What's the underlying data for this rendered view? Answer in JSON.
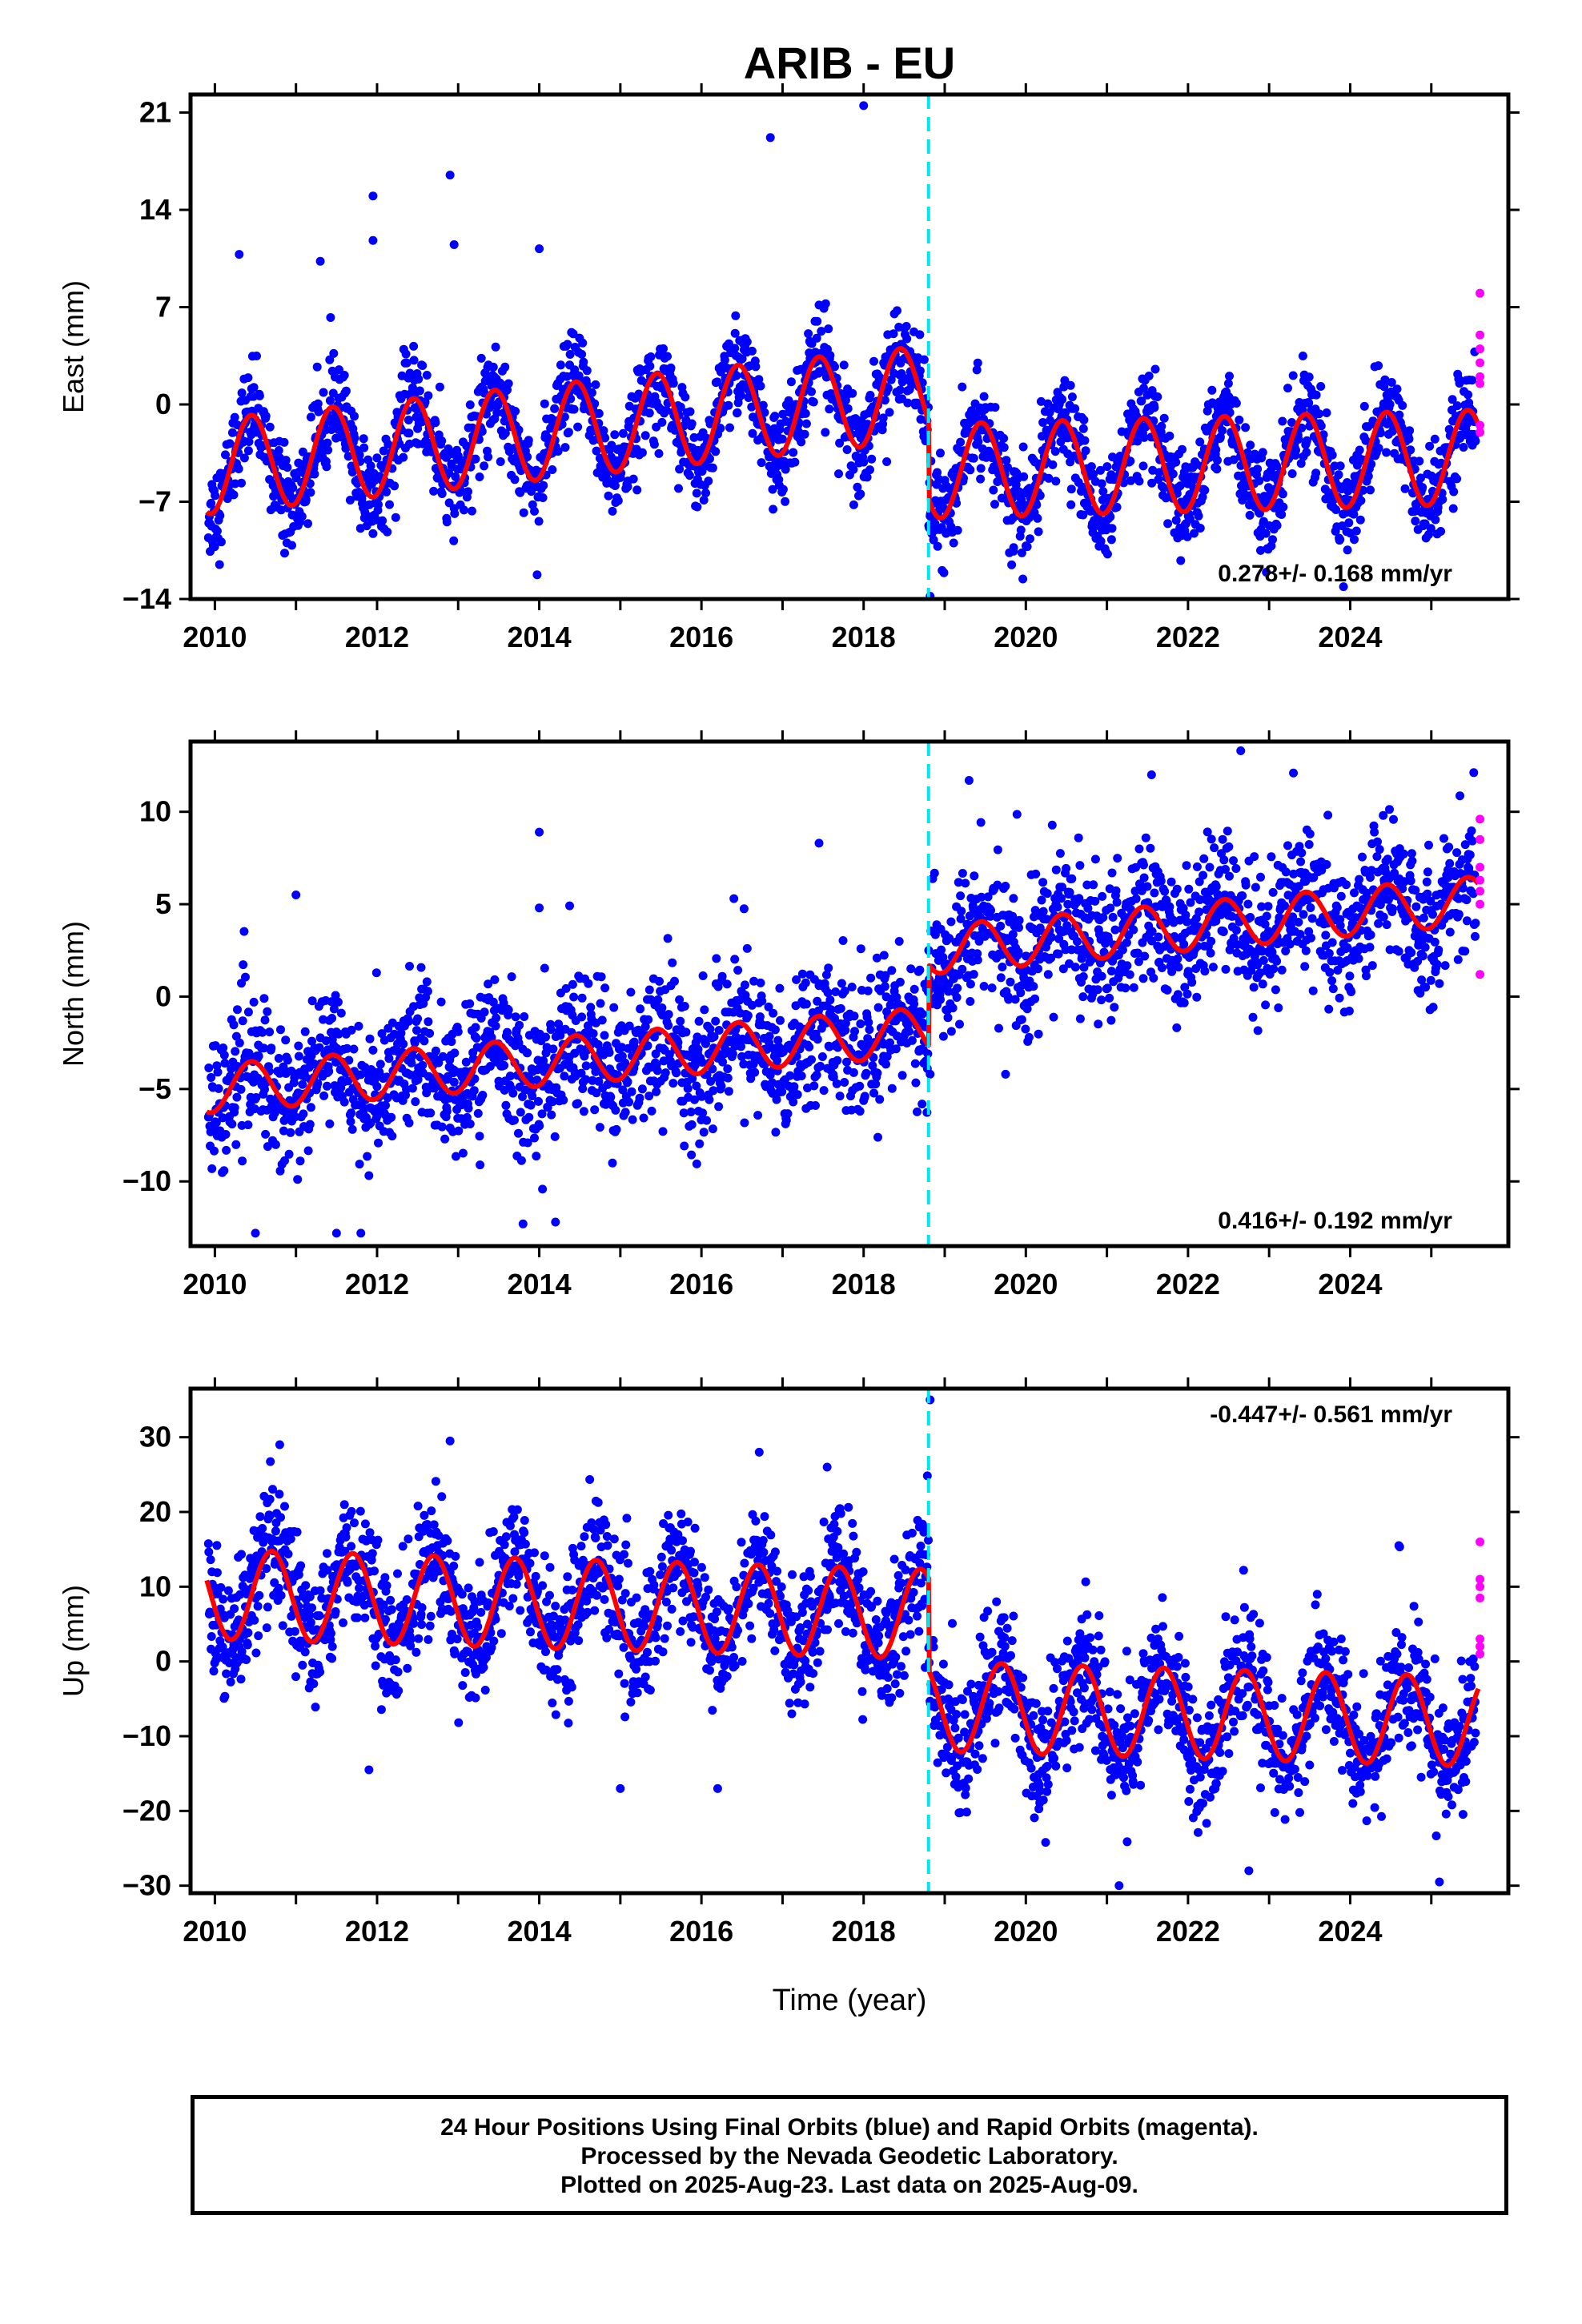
{
  "title": "ARIB - EU",
  "footer": {
    "line1": "24 Hour Positions Using Final Orbits (blue) and Rapid Orbits (magenta).",
    "line2": "Processed by the Nevada Geodetic Laboratory.",
    "line3": "Plotted on 2025-Aug-23. Last data on 2025-Aug-09."
  },
  "colors": {
    "final": "#0000ff",
    "rapid": "#ff00ff",
    "model": "#ff0000",
    "offset": "#00e5ee"
  },
  "chart_data": [
    {
      "type": "scatter",
      "ylabel": "East (mm)",
      "xlabel": "",
      "xlim": [
        2009.7,
        2025.95
      ],
      "ylim": [
        -14,
        22.3
      ],
      "yticks": [
        -14,
        -7,
        0,
        7,
        14,
        21
      ],
      "xticks": [
        2010,
        2012,
        2014,
        2016,
        2018,
        2020,
        2022,
        2024
      ],
      "rate_label": "0.278+/- 0.168 mm/yr",
      "rate_position": "bottom-right",
      "offset_epoch": 2018.8,
      "model": {
        "pre": {
          "t0": 2009.9,
          "y0": -4.5,
          "slope": 0.6,
          "amp": 3.4,
          "phase": 2010.45
        },
        "post": {
          "t0": 2018.8,
          "y0": -4.8,
          "slope": 0.15,
          "amp": 3.4,
          "phase": 2019.45
        },
        "ttp": 2018.8,
        "tend": 2025.58
      },
      "scatter_sd": 1.7,
      "outliers": [
        [
          2010.3,
          10.8
        ],
        [
          2011.3,
          10.3
        ],
        [
          2011.95,
          15.0
        ],
        [
          2011.95,
          11.8
        ],
        [
          2012.9,
          16.5
        ],
        [
          2012.95,
          11.5
        ],
        [
          2014.0,
          11.2
        ],
        [
          2016.85,
          19.2
        ],
        [
          2018.0,
          21.5
        ],
        [
          2018.82,
          -13.8
        ],
        [
          2019.85,
          -10.3
        ]
      ],
      "rapid_points": [
        [
          2025.6,
          8.0
        ],
        [
          2025.6,
          5.0
        ],
        [
          2025.6,
          4.0
        ],
        [
          2025.6,
          3.0
        ],
        [
          2025.6,
          2.0
        ],
        [
          2025.6,
          1.5
        ],
        [
          2025.6,
          -1.5
        ],
        [
          2025.6,
          -2.0
        ]
      ]
    },
    {
      "type": "scatter",
      "ylabel": "North (mm)",
      "xlabel": "",
      "xlim": [
        2009.7,
        2025.95
      ],
      "ylim": [
        -13.5,
        13.8
      ],
      "yticks": [
        -10,
        -5,
        0,
        5,
        10
      ],
      "xticks": [
        2010,
        2012,
        2014,
        2016,
        2018,
        2020,
        2022,
        2024
      ],
      "rate_label": "0.416+/- 0.192 mm/yr",
      "rate_position": "bottom-right",
      "offset_epoch": 2018.8,
      "model": {
        "pre": {
          "t0": 2009.9,
          "y0": -5.0,
          "slope": 0.35,
          "amp": 1.3,
          "phase": 2010.45
        },
        "post": {
          "t0": 2018.8,
          "y0": 2.5,
          "slope": 0.4,
          "amp": 1.3,
          "phase": 2019.45
        },
        "ttp": 2018.8,
        "tend": 2025.58
      },
      "scatter_sd": 1.9,
      "outliers": [
        [
          2011.0,
          5.5
        ],
        [
          2014.0,
          8.9
        ],
        [
          2014.0,
          4.8
        ],
        [
          2016.4,
          5.3
        ],
        [
          2017.45,
          8.3
        ],
        [
          2019.3,
          11.7
        ],
        [
          2021.55,
          12.0
        ],
        [
          2022.65,
          13.3
        ],
        [
          2023.3,
          12.1
        ],
        [
          2010.5,
          -12.8
        ],
        [
          2011.5,
          -12.8
        ],
        [
          2011.8,
          -12.8
        ],
        [
          2013.8,
          -12.3
        ],
        [
          2014.2,
          -12.2
        ],
        [
          2018.82,
          -4.2
        ],
        [
          2019.75,
          -4.2
        ]
      ],
      "rapid_points": [
        [
          2025.6,
          9.6
        ],
        [
          2025.6,
          8.5
        ],
        [
          2025.6,
          7.0
        ],
        [
          2025.6,
          6.3
        ],
        [
          2025.6,
          5.7
        ],
        [
          2025.6,
          5.0
        ],
        [
          2025.6,
          1.2
        ]
      ]
    },
    {
      "type": "scatter",
      "ylabel": "Up (mm)",
      "xlabel": "Time (year)",
      "xlim": [
        2009.7,
        2025.95
      ],
      "ylim": [
        -31,
        36.5
      ],
      "yticks": [
        -30,
        -20,
        -10,
        0,
        10,
        20,
        30
      ],
      "xticks": [
        2010,
        2012,
        2014,
        2016,
        2018,
        2020,
        2022,
        2024
      ],
      "rate_label": "-0.447+/- 0.561 mm/yr",
      "rate_position": "top-right",
      "offset_epoch": 2018.8,
      "model": {
        "pre": {
          "t0": 2009.9,
          "y0": 9.0,
          "slope": -0.3,
          "amp": 6.0,
          "phase": 2010.7
        },
        "post": {
          "t0": 2018.8,
          "y0": -6.0,
          "slope": -0.3,
          "amp": 6.0,
          "phase": 2019.7
        },
        "ttp": 2018.8,
        "tend": 2025.58
      },
      "scatter_sd": 4.2,
      "outliers": [
        [
          2018.82,
          35.0
        ],
        [
          2011.9,
          -14.5
        ],
        [
          2015.0,
          -17.0
        ],
        [
          2016.2,
          -17.0
        ],
        [
          2021.15,
          -30.0
        ],
        [
          2022.75,
          -28.0
        ],
        [
          2025.1,
          -29.5
        ],
        [
          2010.8,
          29.0
        ],
        [
          2012.9,
          29.5
        ],
        [
          2017.55,
          26.0
        ],
        [
          2024.6,
          15.5
        ]
      ],
      "rapid_points": [
        [
          2025.6,
          16.0
        ],
        [
          2025.6,
          11.0
        ],
        [
          2025.6,
          10.0
        ],
        [
          2025.6,
          8.5
        ],
        [
          2025.6,
          3.0
        ],
        [
          2025.6,
          2.0
        ],
        [
          2025.6,
          1.0
        ]
      ]
    }
  ]
}
